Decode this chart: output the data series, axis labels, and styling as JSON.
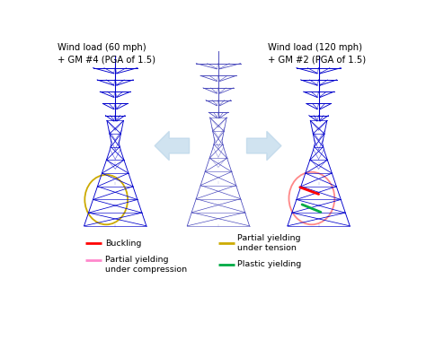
{
  "title_left": "Wind load (60 mph)\n+ GM #4 (PGA of 1.5)",
  "title_right": "Wind load (120 mph)\n+ GM #2 (PGA of 1.5)",
  "legend_items": [
    {
      "label": "Buckling",
      "color": "#ff0000"
    },
    {
      "label": "Partial yielding\nunder compression",
      "color": "#ff88cc"
    },
    {
      "label": "Partial yielding\nunder tension",
      "color": "#ccaa00"
    },
    {
      "label": "Plastic yielding",
      "color": "#00aa44"
    }
  ],
  "tower_color_dark": "#0000cc",
  "tower_color_mid": "#4444bb",
  "bg_color": "#ffffff",
  "arrow_color": "#b8d4e8",
  "circle_left_color": "#ccaa00",
  "circle_right_color": "#ff8888"
}
